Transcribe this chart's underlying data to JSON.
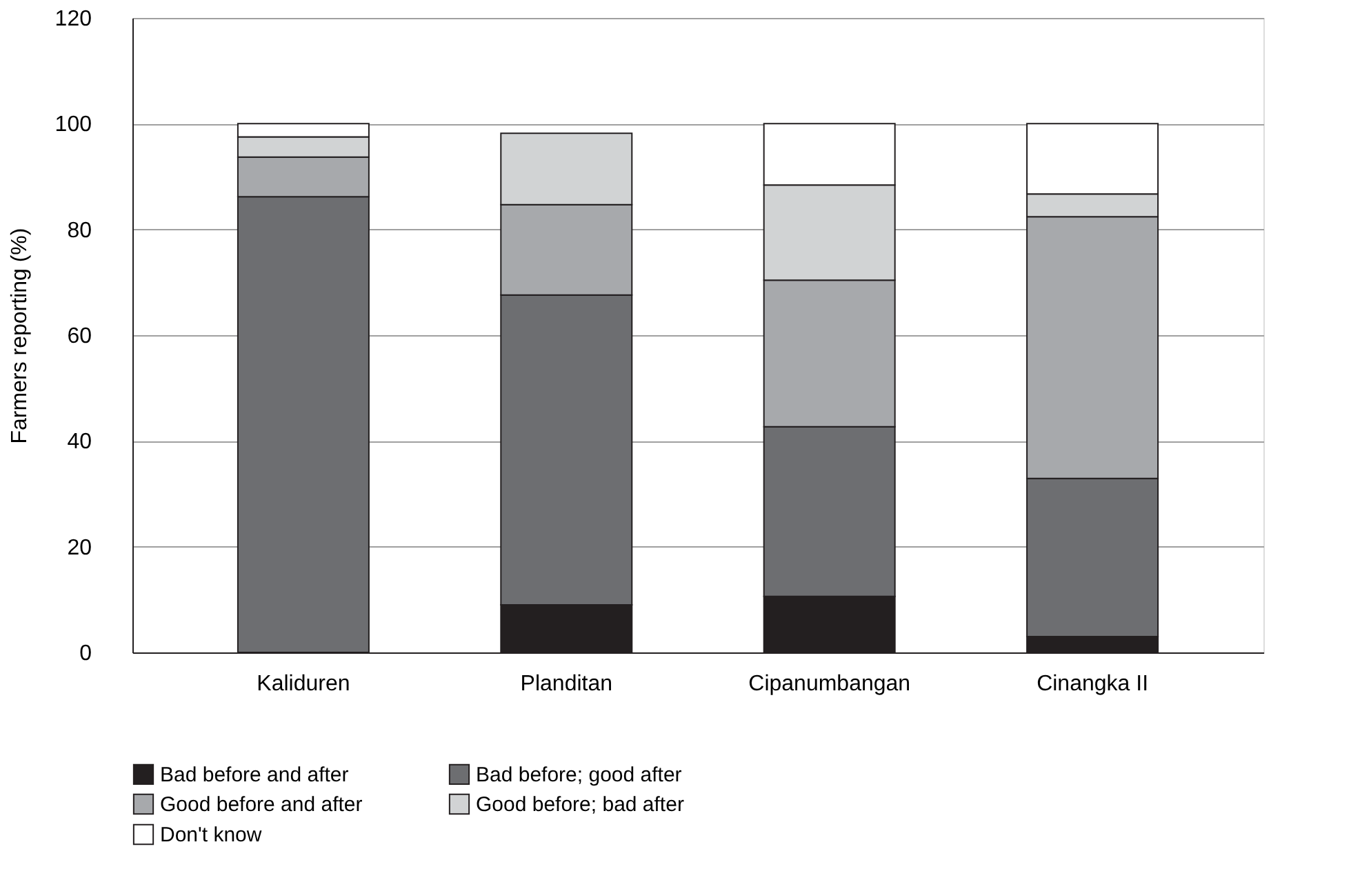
{
  "chart_data": {
    "type": "bar",
    "stacked": true,
    "ylabel": "Farmers reporting (%)",
    "categories": [
      "Kaliduren",
      "Planditan",
      "Cipanumbangan",
      "Cinangka II"
    ],
    "series": [
      {
        "name": "Bad before and after",
        "color": "#231f20",
        "values": [
          0,
          9.0,
          10.6,
          3.0
        ]
      },
      {
        "name": "Bad before; good after",
        "color": "#6d6e71",
        "values": [
          86.2,
          58.6,
          32.1,
          29.9
        ]
      },
      {
        "name": "Good before and after",
        "color": "#a7a9ac",
        "values": [
          7.5,
          17.1,
          27.7,
          49.5
        ]
      },
      {
        "name": "Good before; bad after",
        "color": "#d1d3d4",
        "values": [
          3.8,
          13.5,
          18.0,
          4.3
        ]
      },
      {
        "name": "Don't know",
        "color": "#ffffff",
        "values": [
          2.5,
          0,
          11.6,
          13.3
        ]
      }
    ],
    "ylim": [
      0,
      120
    ],
    "yticks": [
      0,
      20,
      40,
      60,
      80,
      100,
      120
    ],
    "grid": "y",
    "legend": "bottom"
  }
}
